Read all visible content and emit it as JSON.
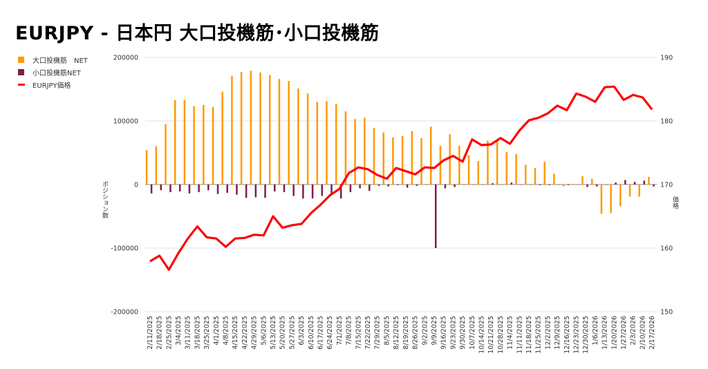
{
  "chart_data": {
    "type": "bar+line",
    "title": "EURJPY - 日本円 大口投機筋･小口投機筋",
    "legend": [
      "大口投機筋　NET",
      "小口投機筋NET",
      "EURJPY価格"
    ],
    "legend_position": "top-left",
    "colors": {
      "large": "#ff9900",
      "small": "#7b1f4a",
      "price": "#ff0000",
      "grid": "#e0e0e0"
    },
    "ylabel_left": "ポジション数",
    "ylabel_right": "価格",
    "ylim_left": [
      -200000,
      200000
    ],
    "ylim_right": [
      150,
      190
    ],
    "yticks_left": [
      "200000",
      "100000",
      "0",
      "-100000",
      "-200000"
    ],
    "yticks_right": [
      "190",
      "180",
      "170",
      "160",
      "150"
    ],
    "grid": true,
    "categories": [
      "2/11/2025",
      "2/18/2025",
      "2/25/2025",
      "3/4/2025",
      "3/11/2025",
      "3/18/2025",
      "3/25/2025",
      "4/1/2025",
      "4/8/2025",
      "4/15/2025",
      "4/22/2025",
      "4/29/2025",
      "5/6/2025",
      "5/13/2025",
      "5/20/2025",
      "5/27/2025",
      "6/3/2025",
      "6/10/2025",
      "6/17/2025",
      "6/24/2025",
      "7/1/2025",
      "7/8/2025",
      "7/15/2025",
      "7/22/2025",
      "7/29/2025",
      "8/5/2025",
      "8/12/2025",
      "8/19/2025",
      "8/26/2025",
      "9/2/2025",
      "9/9/2025",
      "9/16/2025",
      "9/23/2025",
      "9/30/2025",
      "10/7/2025",
      "10/14/2025",
      "10/21/2025",
      "10/28/2025",
      "11/4/2025",
      "11/11/2025",
      "11/18/2025",
      "11/25/2025",
      "12/2/2025",
      "12/9/2025",
      "12/16/2025",
      "12/23/2025",
      "12/30/2025",
      "1/6/2026",
      "1/13/2026",
      "1/20/2026",
      "1/27/2026",
      "2/3/2026",
      "2/10/2026",
      "2/17/2026"
    ],
    "series": [
      {
        "name": "大口投機筋　NET",
        "type": "bar",
        "axis": "left",
        "values": [
          54000,
          60000,
          95000,
          133000,
          133000,
          123000,
          125000,
          122000,
          146000,
          171000,
          177000,
          179000,
          176000,
          172000,
          166000,
          163000,
          151000,
          143000,
          130000,
          131000,
          127000,
          115000,
          103000,
          105000,
          89000,
          82000,
          74000,
          76000,
          84000,
          73000,
          91000,
          61000,
          79000,
          61000,
          46000,
          37000,
          69000,
          70000,
          51000,
          48000,
          31000,
          26000,
          36000,
          17000,
          -3000,
          1000,
          13000,
          9000,
          -46000,
          -45000,
          -34000,
          -19000,
          -19000,
          12000
        ]
      },
      {
        "name": "小口投機筋NET",
        "type": "bar",
        "axis": "left",
        "values": [
          -14000,
          -9000,
          -12000,
          -11000,
          -14000,
          -12000,
          -9000,
          -15000,
          -13000,
          -16000,
          -21000,
          -20000,
          -21000,
          -11000,
          -12000,
          -18000,
          -22000,
          -22000,
          -18000,
          -15000,
          -22000,
          -12000,
          -6000,
          -10000,
          -2000,
          -3000,
          -1000,
          -5000,
          -2000,
          0,
          -100000,
          -6000,
          -4000,
          0,
          0,
          0,
          2000,
          0,
          3000,
          0,
          0,
          -1000,
          -1000,
          0,
          -1000,
          0,
          -4000,
          -3000,
          0,
          3000,
          7000,
          4000,
          6000,
          -3000
        ]
      },
      {
        "name": "EURJPY価格",
        "type": "line",
        "axis": "right",
        "values": [
          157.9,
          158.8,
          156.6,
          159.2,
          161.5,
          163.4,
          161.7,
          161.5,
          160.2,
          161.5,
          161.6,
          162.1,
          162.0,
          165.0,
          163.2,
          163.6,
          163.8,
          165.5,
          166.8,
          168.3,
          169.3,
          171.8,
          172.7,
          172.4,
          171.5,
          170.9,
          172.6,
          172.1,
          171.6,
          172.7,
          172.6,
          173.8,
          174.5,
          173.6,
          177.1,
          176.2,
          176.3,
          177.3,
          176.4,
          178.5,
          180.1,
          180.5,
          181.2,
          182.4,
          181.7,
          184.3,
          183.8,
          183.0,
          185.3,
          185.4,
          183.3,
          184.1,
          183.7,
          181.8
        ]
      }
    ]
  }
}
